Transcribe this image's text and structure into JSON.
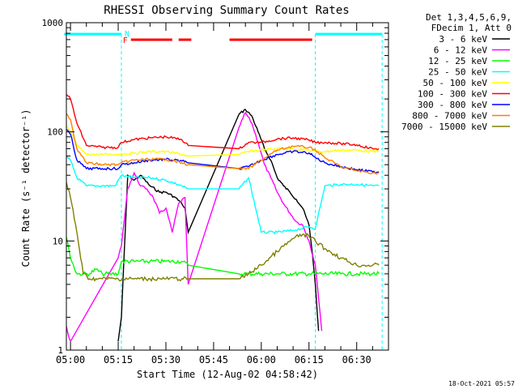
{
  "chart_data": {
    "type": "line",
    "title": "RHESSI Observing Summary Count Rates",
    "xlabel": "Start Time (12-Aug-02 04:58:42)",
    "ylabel": "Count Rate (s⁻¹ detector⁻¹)",
    "y_scale": "log",
    "ylim": [
      1,
      1000
    ],
    "xlim": [
      "04:58:42",
      "06:40:00"
    ],
    "x_ticks": [
      "05:00",
      "05:15",
      "05:30",
      "05:45",
      "06:00",
      "06:15",
      "06:30"
    ],
    "y_ticks": [
      "1",
      "10",
      "100",
      "1000"
    ],
    "grid": false,
    "legend_position": "right",
    "legend_header": [
      "Det 1,3,4,5,6,9,",
      "FDecim 1, Att 0"
    ],
    "footer_date": "18-Oct-2021 05:57",
    "annotations": {
      "flare_flag": {
        "label": "F",
        "color": "#ff0000",
        "bar_segments": [
          [
            "05:19",
            "05:32"
          ],
          [
            "05:34",
            "05:38"
          ],
          [
            "05:50",
            "06:16"
          ]
        ]
      },
      "night_flag": {
        "label": "N",
        "color": "#00ffff",
        "bar_segments": [
          [
            "04:58",
            "05:16"
          ],
          [
            "06:17",
            "06:38"
          ]
        ]
      },
      "night_boundaries": [
        "05:16",
        "06:17",
        "06:38"
      ]
    },
    "series": [
      {
        "name": "3 - 6 keV",
        "color": "#000000",
        "x": [
          "05:15",
          "05:16",
          "05:18",
          "05:20",
          "05:22",
          "05:25",
          "05:28",
          "05:30",
          "05:33",
          "05:35",
          "05:36",
          "05:37",
          "05:53",
          "05:55",
          "05:57",
          "05:59",
          "06:01",
          "06:03",
          "06:05",
          "06:07",
          "06:09",
          "06:11",
          "06:13",
          "06:15",
          "06:16",
          "06:17",
          "06:18"
        ],
        "y": [
          1.2,
          2,
          40,
          36,
          40,
          32,
          28,
          28,
          25,
          22,
          20,
          12,
          145,
          160,
          140,
          100,
          70,
          55,
          38,
          32,
          28,
          24,
          20,
          14,
          8,
          4,
          1.5
        ]
      },
      {
        "name": "6 - 12 keV",
        "color": "#ff00ff",
        "x": [
          "04:58",
          "04:59",
          "05:00",
          "05:15",
          "05:16",
          "05:18",
          "05:20",
          "05:22",
          "05:24",
          "05:26",
          "05:28",
          "05:30",
          "05:32",
          "05:34",
          "05:36",
          "05:37",
          "05:53",
          "05:55",
          "05:57",
          "05:59",
          "06:01",
          "06:03",
          "06:05",
          "06:07",
          "06:09",
          "06:11",
          "06:13",
          "06:15",
          "06:17",
          "06:18",
          "06:19"
        ],
        "y": [
          2.0,
          1.5,
          1.2,
          7,
          9,
          30,
          42,
          32,
          30,
          25,
          18,
          20,
          12,
          22,
          25,
          4,
          110,
          150,
          120,
          80,
          50,
          38,
          28,
          22,
          18,
          15,
          14,
          10,
          6,
          3,
          1.5
        ]
      },
      {
        "name": "12 - 25 keV",
        "color": "#00ff00",
        "x": [
          "04:58",
          "04:59",
          "05:00",
          "05:02",
          "05:04",
          "05:06",
          "05:08",
          "05:10",
          "05:13",
          "05:15",
          "05:16",
          "05:20",
          "05:25",
          "05:30",
          "05:35",
          "05:37",
          "05:53",
          "05:56",
          "06:00",
          "06:05",
          "06:10",
          "06:15",
          "06:17",
          "06:19",
          "06:25",
          "06:30",
          "06:35",
          "06:37"
        ],
        "y": [
          14,
          10,
          7,
          5,
          5,
          5,
          5.5,
          5,
          5,
          5,
          6.5,
          6.5,
          6.5,
          6.5,
          6.5,
          6,
          5,
          5,
          5,
          5,
          5,
          5,
          5,
          5,
          5,
          5,
          5,
          5
        ]
      },
      {
        "name": "25 - 50 keV",
        "color": "#00ffff",
        "x": [
          "04:58",
          "05:00",
          "05:02",
          "05:05",
          "05:10",
          "05:14",
          "05:16",
          "05:20",
          "05:25",
          "05:30",
          "05:35",
          "05:37",
          "05:53",
          "05:56",
          "06:00",
          "06:05",
          "06:10",
          "06:15",
          "06:17",
          "06:20",
          "06:25",
          "06:30",
          "06:35",
          "06:37"
        ],
        "y": [
          60,
          55,
          38,
          32,
          32,
          32,
          40,
          38,
          38,
          36,
          32,
          30,
          30,
          38,
          12,
          12,
          12.5,
          13.5,
          13,
          32,
          33,
          33,
          32,
          32
        ]
      },
      {
        "name": "50 - 100 keV",
        "color": "#ffff00",
        "x": [
          "04:58",
          "05:00",
          "05:02",
          "05:05",
          "05:10",
          "05:15",
          "05:20",
          "05:25",
          "05:30",
          "05:35",
          "05:37",
          "05:53",
          "05:56",
          "06:00",
          "06:05",
          "06:10",
          "06:15",
          "06:17",
          "06:20",
          "06:25",
          "06:30",
          "06:35",
          "06:37"
        ],
        "y": [
          120,
          100,
          75,
          62,
          62,
          62,
          64,
          66,
          66,
          62,
          60,
          62,
          66,
          68,
          70,
          70,
          68,
          66,
          66,
          68,
          68,
          66,
          66
        ]
      },
      {
        "name": "100 - 300 keV",
        "color": "#ff0000",
        "x": [
          "04:58",
          "05:00",
          "05:02",
          "05:05",
          "05:10",
          "05:15",
          "05:16",
          "05:20",
          "05:25",
          "05:30",
          "05:35",
          "05:37",
          "05:53",
          "05:56",
          "06:00",
          "06:05",
          "06:10",
          "06:15",
          "06:17",
          "06:20",
          "06:25",
          "06:30",
          "06:35",
          "06:37"
        ],
        "y": [
          240,
          200,
          120,
          75,
          72,
          72,
          80,
          85,
          88,
          90,
          85,
          75,
          70,
          80,
          80,
          86,
          88,
          84,
          80,
          80,
          78,
          76,
          70,
          70
        ]
      },
      {
        "name": "300 - 800 keV",
        "color": "#0000ff",
        "x": [
          "04:58",
          "05:00",
          "05:02",
          "05:05",
          "05:10",
          "05:15",
          "05:16",
          "05:20",
          "05:25",
          "05:30",
          "05:35",
          "05:37",
          "05:53",
          "05:56",
          "06:00",
          "06:05",
          "06:10",
          "06:15",
          "06:17",
          "06:20",
          "06:25",
          "06:30",
          "06:35",
          "06:37"
        ],
        "y": [
          110,
          95,
          55,
          46,
          46,
          46,
          50,
          52,
          55,
          56,
          54,
          52,
          46,
          48,
          55,
          62,
          66,
          64,
          58,
          52,
          48,
          45,
          43,
          43
        ]
      },
      {
        "name": "800 - 7000 keV",
        "color": "#ff8000",
        "x": [
          "04:58",
          "05:00",
          "05:02",
          "05:05",
          "05:10",
          "05:15",
          "05:16",
          "05:20",
          "05:25",
          "05:30",
          "05:35",
          "05:37",
          "05:53",
          "05:56",
          "06:00",
          "06:05",
          "06:10",
          "06:15",
          "06:17",
          "06:20",
          "06:25",
          "06:30",
          "06:35",
          "06:37"
        ],
        "y": [
          160,
          130,
          70,
          52,
          50,
          50,
          52,
          55,
          56,
          56,
          52,
          50,
          46,
          46,
          55,
          68,
          74,
          72,
          68,
          58,
          48,
          44,
          42,
          42
        ]
      },
      {
        "name": "7000 - 15000 keV",
        "color": "#808000",
        "x": [
          "04:58",
          "05:00",
          "05:02",
          "05:04",
          "05:06",
          "05:08",
          "05:10",
          "05:15",
          "05:20",
          "05:25",
          "05:30",
          "05:35",
          "05:37",
          "05:53",
          "05:56",
          "06:00",
          "06:05",
          "06:10",
          "06:13",
          "06:15",
          "06:17",
          "06:20",
          "06:25",
          "06:30",
          "06:35",
          "06:37"
        ],
        "y": [
          40,
          25,
          12,
          5,
          4.5,
          4.5,
          4.5,
          4.5,
          4.5,
          4.5,
          4.5,
          4.5,
          4.5,
          4.5,
          5,
          6,
          8,
          10.5,
          11.5,
          11,
          10,
          8.5,
          7,
          6,
          6,
          6
        ]
      }
    ]
  }
}
